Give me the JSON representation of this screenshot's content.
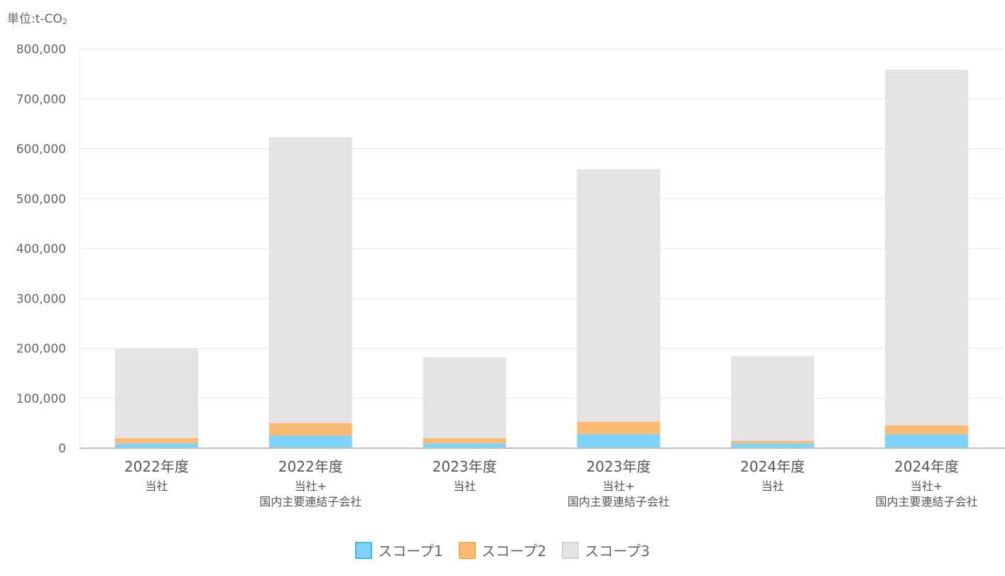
{
  "chart_data": {
    "type": "bar",
    "stacked": true,
    "unit_label": "単位:t-CO",
    "unit_subscript": "2",
    "categories": [
      {
        "year": "2022年度",
        "line1": "当社",
        "line2": ""
      },
      {
        "year": "2022年度",
        "line1": "当社+",
        "line2": "国内主要連結子会社"
      },
      {
        "year": "2023年度",
        "line1": "当社",
        "line2": ""
      },
      {
        "year": "2023年度",
        "line1": "当社+",
        "line2": "国内主要連結子会社"
      },
      {
        "year": "2024年度",
        "line1": "当社",
        "line2": ""
      },
      {
        "year": "2024年度",
        "line1": "当社+",
        "line2": "国内主要連結子会社"
      }
    ],
    "series": [
      {
        "name": "スコープ1",
        "color": "#7dd3fc",
        "border": "#38bdf8",
        "values": [
          9500,
          25000,
          9500,
          28000,
          9500,
          27500
        ]
      },
      {
        "name": "スコープ2",
        "color": "#fbba72",
        "border": "#f7a84f",
        "values": [
          10500,
          25000,
          10500,
          25000,
          5000,
          18000
        ]
      },
      {
        "name": "スコープ3",
        "color": "#e3e3e3",
        "border": "#d3d3d3",
        "values": [
          180000,
          573000,
          162000,
          506000,
          170000,
          713000
        ]
      }
    ],
    "ylim": [
      0,
      800000
    ],
    "yticks": [
      "0",
      "100,000",
      "200,000",
      "300,000",
      "400,000",
      "500,000",
      "600,000",
      "700,000",
      "800,000"
    ],
    "grid": true,
    "legend_position": "bottom"
  }
}
